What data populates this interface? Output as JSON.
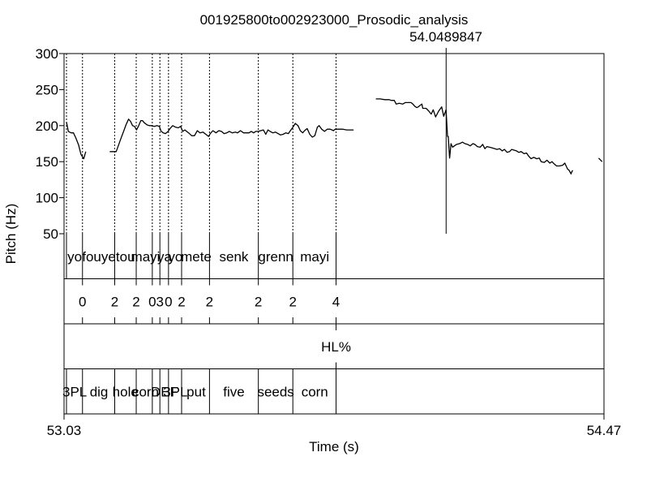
{
  "chart_data": {
    "type": "line",
    "title": "001925800to002923000_Prosodic_analysis",
    "cursor_readout": "54.0489847",
    "xlabel": "Time (s)",
    "ylabel": "Pitch (Hz)",
    "xlim": [
      53.03,
      54.47
    ],
    "ylim": [
      50,
      300
    ],
    "x_tick_labels": [
      "53.03",
      "54.47"
    ],
    "y_ticks": [
      50,
      100,
      150,
      200,
      250,
      300
    ],
    "grid": false,
    "cursor_time": 54.049,
    "line_color": "#000000",
    "series": [
      {
        "x": [
          53.0365,
          53.0414,
          53.0488,
          53.0551,
          53.0614,
          53.0689,
          53.0752,
          53.0826,
          53.088
        ],
        "y": [
          205,
          192,
          190,
          190,
          183,
          173,
          160,
          154,
          164
        ]
      },
      {
        "x": [
          53.1519,
          53.1633,
          53.169,
          53.1747,
          53.1816,
          53.1895,
          53.1951,
          53.2022,
          53.2072,
          53.2127,
          53.2178,
          53.2234,
          53.2291,
          53.2347,
          53.239,
          53.2438,
          53.2515,
          53.2572,
          53.2629,
          53.2707,
          53.2778,
          53.284,
          53.2891,
          53.2947,
          53.3004,
          53.3077,
          53.3127,
          53.3197,
          53.3268,
          53.3347,
          53.341,
          53.3466,
          53.3522,
          53.3621,
          53.3704,
          53.3779,
          53.3855,
          53.3925,
          53.4005,
          53.4081,
          53.4156,
          53.42,
          53.427,
          53.4351,
          53.4427,
          53.4497,
          53.4568,
          53.4639,
          53.4709,
          53.4785,
          53.4869,
          53.4926,
          53.5004,
          53.5087,
          53.5149,
          53.5231,
          53.5293,
          53.5356,
          53.5413,
          53.5483,
          53.5545,
          53.5616,
          53.5679,
          53.5741,
          53.5797,
          53.5867,
          53.5938,
          53.6009,
          53.6072,
          53.6143,
          53.6214,
          53.6283,
          53.6337,
          53.6405,
          53.6467,
          53.6539,
          53.66,
          53.6665,
          53.6716,
          53.6784,
          53.6854,
          53.692,
          53.6988,
          53.7057,
          53.7105,
          53.7172,
          53.7247,
          53.7319,
          53.7401,
          53.7486,
          53.7529,
          53.7599,
          53.767,
          53.774,
          53.7837,
          53.7909,
          53.7981,
          53.8023
        ],
        "y": [
          164,
          164,
          164,
          172,
          182,
          193,
          201,
          209,
          206,
          200,
          199,
          194,
          200,
          207,
          207,
          204,
          201,
          200,
          200,
          199,
          200,
          199,
          192,
          190,
          189,
          192,
          196,
          200,
          198,
          197,
          199,
          192,
          194,
          190,
          186,
          186,
          193,
          190,
          191,
          188,
          185,
          189,
          193,
          190,
          193,
          192,
          189,
          190,
          192,
          190,
          191,
          190,
          193,
          190,
          190,
          190,
          192,
          190,
          192,
          192,
          193,
          194,
          188,
          194,
          192,
          190,
          191,
          189,
          187,
          188,
          190,
          189,
          193,
          198,
          203,
          200,
          193,
          190,
          193,
          196,
          188,
          184,
          186,
          198,
          200,
          195,
          192,
          195,
          195,
          193,
          195,
          195,
          195,
          195,
          194,
          194,
          194,
          194
        ]
      },
      {
        "x": [
          53.8615,
          53.8732,
          53.8853,
          53.8972,
          53.9027,
          53.9106,
          53.9159,
          53.9239,
          53.9335,
          53.9399,
          53.9481,
          53.9555,
          53.9603,
          53.9651,
          53.9707,
          53.9747,
          53.9793,
          53.9843,
          53.9867,
          53.9956,
          54.0029,
          54.0093,
          54.0147,
          54.021,
          54.0289,
          54.0372,
          54.0426,
          54.0489,
          54.0526,
          54.0547,
          54.0583,
          54.0621,
          54.0664,
          54.0711,
          54.077,
          54.0847,
          54.0928,
          54.0991,
          54.1062,
          54.1133,
          54.1204,
          54.1255,
          54.1322,
          54.1399,
          54.1465,
          54.1524,
          54.1578,
          54.1646,
          54.1719,
          54.1791,
          54.1842,
          54.1917,
          54.1985,
          54.2044,
          54.2117,
          54.218,
          54.224,
          54.2302,
          54.2367,
          54.2428,
          54.2493,
          54.2568,
          54.2635,
          54.2687,
          54.2755,
          54.2826,
          54.2907,
          54.2974,
          54.3025,
          54.3108,
          54.318,
          54.3255,
          54.3315,
          54.3371,
          54.3437,
          54.3511,
          54.3598,
          54.3656,
          54.3727,
          54.377,
          54.3823,
          54.3842,
          54.3867
        ],
        "y": [
          237,
          237,
          236,
          236,
          235,
          235,
          230,
          231,
          230,
          232,
          232,
          232,
          230,
          227,
          225,
          226,
          228,
          230,
          224,
          224,
          220,
          216,
          222,
          212,
          220,
          226,
          213,
          222,
          185,
          185,
          155,
          175,
          170,
          172,
          174,
          175,
          177,
          175,
          174,
          172,
          175,
          174,
          171,
          170,
          174,
          168,
          171,
          170,
          169,
          168,
          167,
          168,
          165,
          167,
          163,
          164,
          167,
          166,
          165,
          163,
          164,
          161,
          162,
          158,
          154,
          156,
          154,
          155,
          150,
          149,
          152,
          148,
          150,
          147,
          144,
          144,
          145,
          148,
          140,
          138,
          133,
          136,
          138
        ]
      },
      {
        "x": [
          54.4558,
          54.465
        ],
        "y": [
          155,
          150
        ]
      }
    ]
  },
  "tiers": [
    {
      "name": "words",
      "boundaries": [
        53.0365,
        53.0792,
        53.1651,
        53.2225,
        53.2654,
        53.2856,
        53.3086,
        53.3435,
        53.4179,
        53.5482,
        53.6402,
        53.7555
      ],
      "labels": [
        {
          "text": "yo",
          "t": 53.0584
        },
        {
          "text": "fouye",
          "t": 53.1231
        },
        {
          "text": "tou",
          "t": 53.1938
        },
        {
          "text": "mayi",
          "t": 53.2473
        },
        {
          "text": "ya",
          "t": 53.2981
        },
        {
          "text": "yo",
          "t": 53.3269
        },
        {
          "text": "mete",
          "t": 53.3824
        },
        {
          "text": "senk",
          "t": 53.4829
        },
        {
          "text": "grenn",
          "t": 53.5946
        },
        {
          "text": "mayi",
          "t": 53.6986
        }
      ]
    },
    {
      "name": "tones",
      "boundaries": [],
      "points": [
        {
          "text": "0",
          "t": 53.0792
        },
        {
          "text": "2",
          "t": 53.1651
        },
        {
          "text": "2",
          "t": 53.2225
        },
        {
          "text": "0",
          "t": 53.2654
        },
        {
          "text": "3",
          "t": 53.2856
        },
        {
          "text": "0",
          "t": 53.3086
        },
        {
          "text": "2",
          "t": 53.3435
        },
        {
          "text": "2",
          "t": 53.4179
        },
        {
          "text": "2",
          "t": 53.5482
        },
        {
          "text": "2",
          "t": 53.6402
        },
        {
          "text": "4",
          "t": 53.7555
        }
      ]
    },
    {
      "name": "boundary-tones",
      "boundaries": [],
      "points": [
        {
          "text": "HL%",
          "t": 53.7555
        }
      ]
    },
    {
      "name": "gloss",
      "boundaries": [
        53.0365,
        53.0792,
        53.1651,
        53.2225,
        53.2654,
        53.2856,
        53.3086,
        53.3435,
        53.4179,
        53.5482,
        53.6402,
        53.7555
      ],
      "labels": [
        {
          "text": "3PL",
          "t": 53.0584
        },
        {
          "text": "dig",
          "t": 53.1231
        },
        {
          "text": "hole",
          "t": 53.1938
        },
        {
          "text": "corn",
          "t": 53.2473
        },
        {
          "text": "DEF",
          "t": 53.2981
        },
        {
          "text": "3PL",
          "t": 53.3269
        },
        {
          "text": "put",
          "t": 53.3824
        },
        {
          "text": "five",
          "t": 53.4829
        },
        {
          "text": "seeds",
          "t": 53.5946
        },
        {
          "text": "corn",
          "t": 53.6986
        }
      ]
    }
  ]
}
